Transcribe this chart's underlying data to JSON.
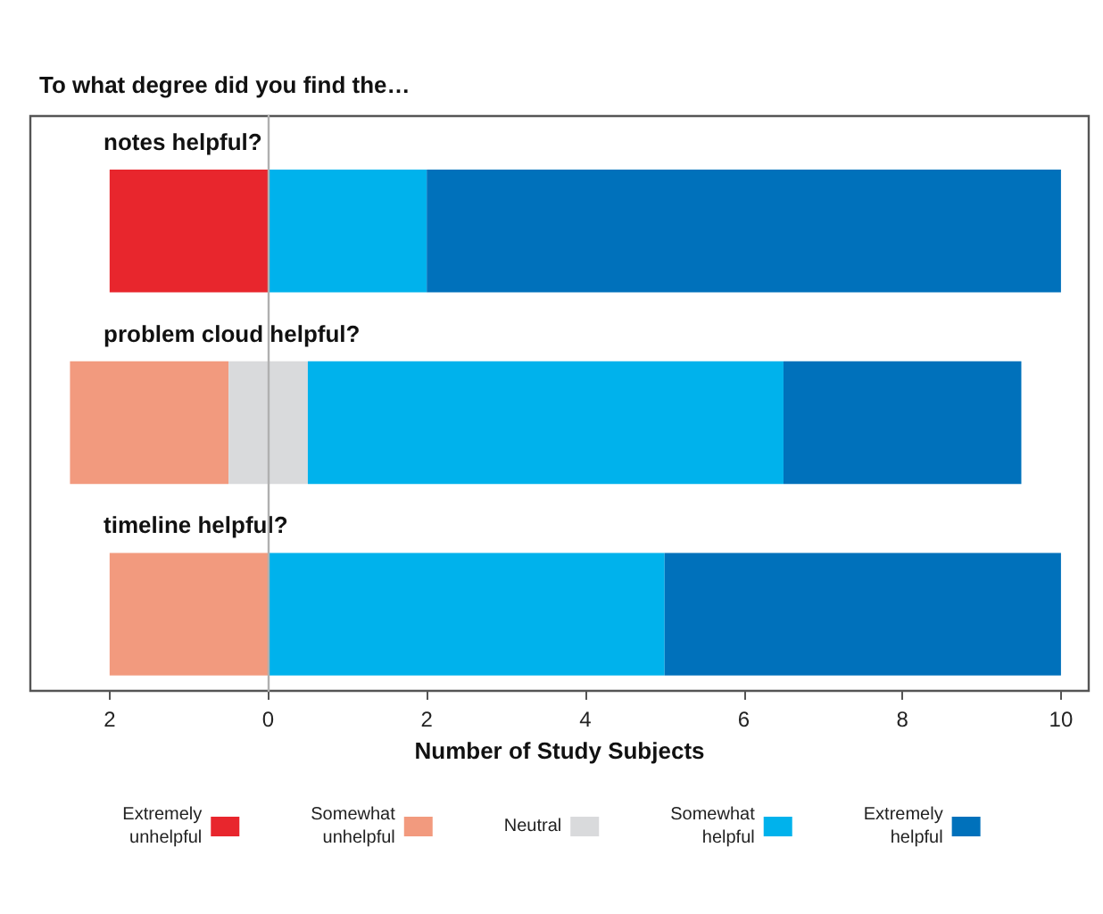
{
  "chart_data": {
    "type": "bar",
    "orientation": "horizontal",
    "title": "To what degree did you find the…",
    "xlabel": "Number of Study Subjects",
    "categories": [
      "notes helpful?",
      "problem cloud helpful?",
      "timeline helpful?"
    ],
    "series": [
      {
        "name": "Extremely unhelpful",
        "color": "#e8262d",
        "values": [
          2,
          null,
          null
        ],
        "base": [
          -2,
          null,
          null
        ]
      },
      {
        "name": "Somewhat unhelpful",
        "color": "#f29a7e",
        "values": [
          null,
          2,
          2
        ],
        "base": [
          null,
          -2.5,
          -2
        ]
      },
      {
        "name": "Neutral",
        "color": "#d9dadc",
        "values": [
          null,
          1,
          null
        ],
        "base": [
          null,
          -0.5,
          null
        ]
      },
      {
        "name": "Somewhat helpful",
        "color": "#00b2ec",
        "values": [
          2,
          6,
          5
        ],
        "base": [
          0,
          0.5,
          0
        ]
      },
      {
        "name": "Extremely helpful",
        "color": "#0071bb",
        "values": [
          8,
          3,
          5
        ],
        "base": [
          2,
          6.5,
          5
        ]
      }
    ],
    "xlim": [
      -3,
      10.35
    ],
    "xticks": [
      {
        "value": -2,
        "label": "2"
      },
      0,
      2,
      4,
      6,
      8,
      10
    ],
    "grid": false,
    "legend": "bottom"
  }
}
